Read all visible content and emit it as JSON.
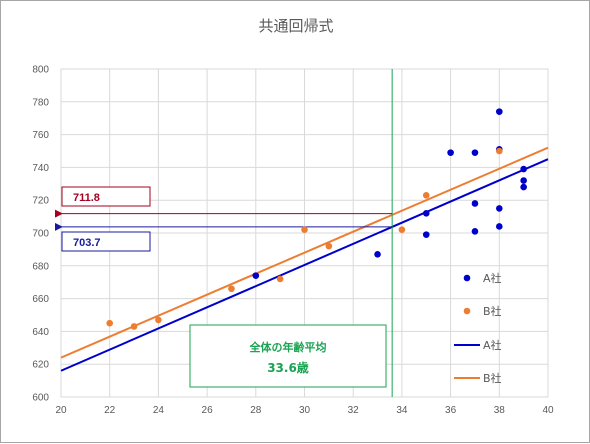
{
  "chart_data": {
    "type": "scatter",
    "title": "共通回帰式",
    "xlim": [
      20,
      40
    ],
    "ylim": [
      600,
      800
    ],
    "x_ticks": [
      20,
      22,
      24,
      26,
      28,
      30,
      32,
      34,
      36,
      38,
      40
    ],
    "y_ticks": [
      600,
      620,
      640,
      660,
      680,
      700,
      720,
      740,
      760,
      780,
      800
    ],
    "grid": true,
    "legend_position": "right",
    "series": [
      {
        "name": "A社",
        "color": "#0000cc",
        "points": [
          [
            28,
            674
          ],
          [
            33,
            687
          ],
          [
            35,
            699
          ],
          [
            35,
            712
          ],
          [
            36,
            749
          ],
          [
            37,
            701
          ],
          [
            37,
            718
          ],
          [
            37,
            749
          ],
          [
            38,
            704
          ],
          [
            38,
            715
          ],
          [
            38,
            751
          ],
          [
            38,
            774
          ],
          [
            39,
            728
          ],
          [
            39,
            732
          ],
          [
            39,
            739
          ]
        ]
      },
      {
        "name": "B社",
        "color": "#ed7d31",
        "points": [
          [
            22,
            645
          ],
          [
            23,
            643
          ],
          [
            24,
            647
          ],
          [
            27,
            666
          ],
          [
            29,
            672
          ],
          [
            30,
            702
          ],
          [
            31,
            692
          ],
          [
            34,
            702
          ],
          [
            35,
            723
          ],
          [
            38,
            750
          ]
        ]
      }
    ],
    "lines": [
      {
        "name": "A社",
        "color": "#0000cc",
        "x": [
          20,
          40
        ],
        "y": [
          616,
          745
        ]
      },
      {
        "name": "B社",
        "color": "#ed7d31",
        "x": [
          20,
          40
        ],
        "y": [
          624,
          752
        ]
      }
    ],
    "average_age": {
      "x": 33.6,
      "color": "#1aa352",
      "label": "全体の年齢平均",
      "value_label": "33.6歳"
    },
    "callouts": [
      {
        "label": "711.8",
        "y": 711.8,
        "color": "#a50021"
      },
      {
        "label": "703.7",
        "y": 703.7,
        "color": "#1a1aa0"
      }
    ]
  }
}
